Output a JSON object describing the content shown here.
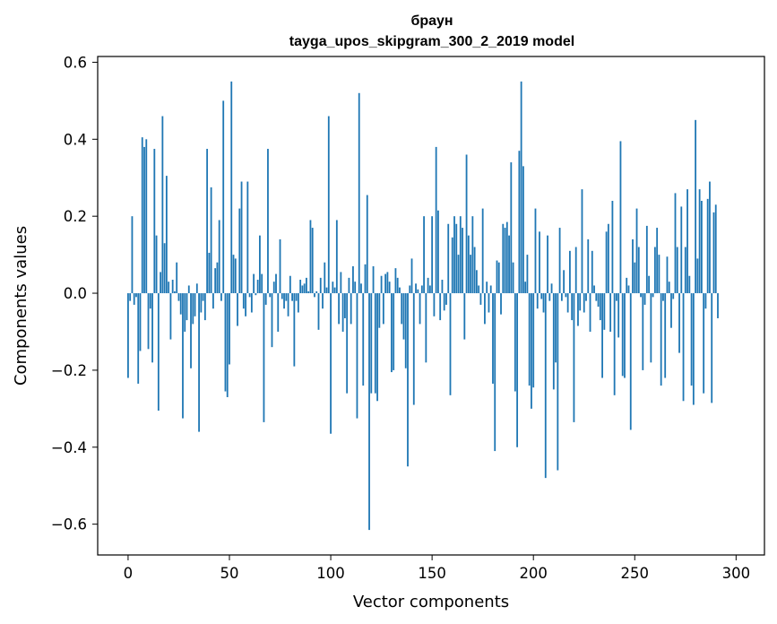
{
  "chart_data": {
    "type": "bar",
    "title_line1": "браун",
    "title_line2": "tayga_upos_skipgram_300_2_2019 model",
    "xlabel": "Vector components",
    "ylabel": "Components values",
    "xlim": [
      -15,
      314
    ],
    "ylim": [
      -0.68,
      0.615
    ],
    "x_ticks": [
      0,
      50,
      100,
      150,
      200,
      250,
      300
    ],
    "x_tick_labels": [
      "0",
      "50",
      "100",
      "150",
      "200",
      "250",
      "300"
    ],
    "y_ticks": [
      -0.6,
      -0.4,
      -0.2,
      0.0,
      0.2,
      0.4,
      0.6
    ],
    "y_tick_labels": [
      "−0.6",
      "−0.4",
      "−0.2",
      "0.0",
      "0.2",
      "0.4",
      "0.6"
    ],
    "bar_color": "#1f77b4",
    "values": [
      -0.22,
      -0.02,
      0.2,
      -0.03,
      -0.01,
      -0.235,
      -0.15,
      0.405,
      0.38,
      0.4,
      -0.145,
      -0.04,
      -0.18,
      0.375,
      0.15,
      -0.305,
      0.055,
      0.46,
      0.13,
      0.305,
      0.03,
      -0.12,
      0.035,
      0.005,
      0.08,
      -0.02,
      -0.055,
      -0.325,
      -0.1,
      -0.07,
      0.02,
      -0.195,
      -0.08,
      -0.06,
      0.025,
      -0.36,
      -0.05,
      -0.02,
      -0.07,
      0.375,
      0.105,
      0.275,
      -0.04,
      0.065,
      0.08,
      0.19,
      -0.02,
      0.5,
      -0.255,
      -0.27,
      -0.185,
      0.55,
      0.1,
      0.09,
      -0.085,
      0.22,
      0.29,
      -0.04,
      -0.06,
      0.29,
      -0.01,
      -0.05,
      0.05,
      -0.005,
      0.035,
      0.15,
      0.05,
      -0.335,
      -0.03,
      0.375,
      -0.01,
      -0.14,
      0.03,
      0.05,
      -0.1,
      0.14,
      -0.015,
      -0.04,
      -0.02,
      -0.06,
      0.045,
      -0.02,
      -0.19,
      -0.02,
      -0.05,
      0.035,
      0.02,
      0.025,
      0.04,
      0.005,
      0.19,
      0.17,
      -0.01,
      0.005,
      -0.095,
      0.04,
      -0.04,
      0.08,
      0.015,
      0.46,
      -0.365,
      0.03,
      0.015,
      0.19,
      -0.08,
      0.055,
      -0.1,
      -0.065,
      -0.26,
      0.04,
      -0.08,
      0.07,
      0.03,
      -0.325,
      0.52,
      0.025,
      -0.24,
      0.075,
      0.255,
      -0.615,
      -0.26,
      0.07,
      -0.26,
      -0.28,
      -0.09,
      0.045,
      -0.08,
      0.05,
      0.055,
      0.03,
      -0.205,
      -0.2,
      0.065,
      0.04,
      0.015,
      -0.08,
      -0.12,
      -0.195,
      -0.45,
      0.02,
      0.09,
      -0.29,
      0.025,
      0.01,
      -0.08,
      0.02,
      0.2,
      -0.18,
      0.04,
      0.02,
      0.2,
      -0.06,
      0.38,
      0.215,
      -0.07,
      0.035,
      -0.045,
      -0.03,
      0.18,
      -0.265,
      0.145,
      0.2,
      0.18,
      0.1,
      0.2,
      0.17,
      -0.12,
      0.36,
      0.15,
      0.1,
      0.2,
      0.12,
      0.06,
      0.02,
      -0.03,
      0.22,
      -0.08,
      0.03,
      -0.05,
      0.02,
      -0.235,
      -0.41,
      0.085,
      0.08,
      -0.055,
      0.18,
      0.17,
      0.185,
      0.15,
      0.34,
      0.08,
      -0.255,
      -0.4,
      0.37,
      0.55,
      0.33,
      0.03,
      0.1,
      -0.24,
      -0.3,
      -0.245,
      0.22,
      -0.04,
      0.16,
      -0.015,
      -0.05,
      -0.48,
      0.15,
      -0.02,
      0.025,
      -0.25,
      -0.18,
      -0.46,
      0.17,
      -0.02,
      0.06,
      -0.01,
      -0.05,
      0.11,
      -0.07,
      -0.335,
      0.12,
      -0.085,
      -0.045,
      0.27,
      -0.05,
      -0.02,
      0.14,
      -0.1,
      0.11,
      0.02,
      -0.02,
      -0.035,
      -0.07,
      -0.22,
      -0.095,
      0.16,
      0.18,
      -0.1,
      0.24,
      -0.265,
      -0.02,
      -0.115,
      0.395,
      -0.215,
      -0.22,
      0.04,
      0.02,
      -0.355,
      0.14,
      0.08,
      0.22,
      0.12,
      -0.01,
      -0.2,
      -0.03,
      0.175,
      0.045,
      -0.18,
      -0.01,
      0.12,
      0.17,
      0.1,
      -0.24,
      -0.02,
      -0.22,
      0.095,
      0.03,
      -0.09,
      -0.015,
      0.26,
      0.12,
      -0.155,
      0.225,
      -0.28,
      0.12,
      0.27,
      0.045,
      -0.24,
      -0.29,
      0.45,
      0.09,
      0.27,
      0.24,
      -0.26,
      -0.04,
      0.245,
      0.29,
      -0.285,
      0.21,
      0.23,
      -0.065
    ]
  }
}
